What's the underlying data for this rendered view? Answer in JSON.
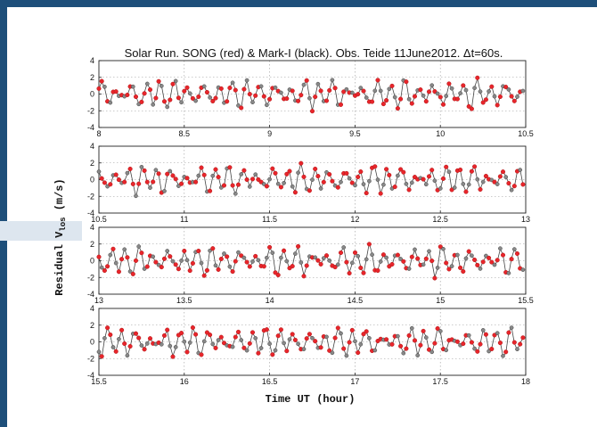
{
  "chart_data": {
    "type": "scatter",
    "title": "Solar Run. SONG (red) & Mark-I (black). Obs. Teide 11June2012.  Δt=60s.",
    "xlabel": "Time UT (hour)",
    "ylabel": "Residual V",
    "ylabel_subscript": "los",
    "ylabel_unit": " (m/s)",
    "ylim": [
      -4,
      4
    ],
    "yticks": [
      "4",
      "2",
      "0",
      "-2",
      "-4"
    ],
    "grid": true,
    "colors": {
      "song": "#e8252b",
      "marki": "#444444"
    },
    "series_names": [
      "SONG",
      "Mark-I"
    ],
    "panels": [
      {
        "xlim": [
          8,
          10.5
        ],
        "xticks": [
          "8",
          "8.5",
          "9",
          "9.5",
          "10",
          "10.5"
        ]
      },
      {
        "xlim": [
          10.5,
          13
        ],
        "xticks": [
          "10.5",
          "11",
          "11.5",
          "12",
          "12.5",
          "13"
        ]
      },
      {
        "xlim": [
          13,
          15.5
        ],
        "xticks": [
          "13",
          "13.5",
          "14",
          "14.5",
          "15",
          "15.5"
        ]
      },
      {
        "xlim": [
          15.5,
          18
        ],
        "xticks": [
          "15.5",
          "16",
          "16.5",
          "17",
          "17.5",
          "18"
        ]
      }
    ],
    "sample_interval_hours": 0.01667
  }
}
